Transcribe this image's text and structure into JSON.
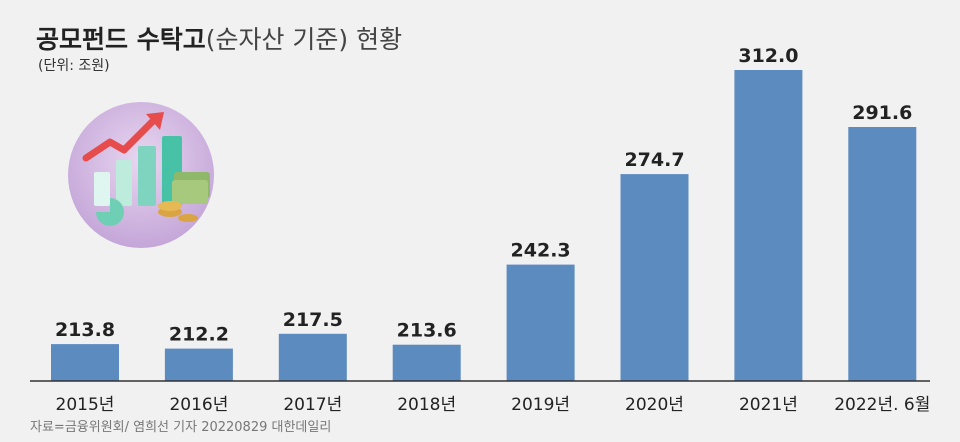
{
  "title": {
    "main": "공모펀드 수탁고",
    "sub": "(순자산 기준)",
    "tail": "현황"
  },
  "unit_label": "(단위: 조원)",
  "source_text": "자료=금융위원회/ 염희선 기자 20220829 대한데일리",
  "colors": {
    "bar": "#5b8bbf",
    "background": "#f1f1f1",
    "axis": "#333333"
  },
  "illustration": "growth-chart-with-money-icon",
  "chart_data": {
    "type": "bar",
    "categories": [
      "2015년",
      "2016년",
      "2017년",
      "2018년",
      "2019년",
      "2020년",
      "2021년",
      "2022년. 6월"
    ],
    "values": [
      213.8,
      212.2,
      217.5,
      213.6,
      242.3,
      274.7,
      312.0,
      291.6
    ],
    "value_labels": [
      "213.8",
      "212.2",
      "217.5",
      "213.6",
      "242.3",
      "274.7",
      "312.0",
      "291.6"
    ],
    "grid": false,
    "legend": "none"
  }
}
